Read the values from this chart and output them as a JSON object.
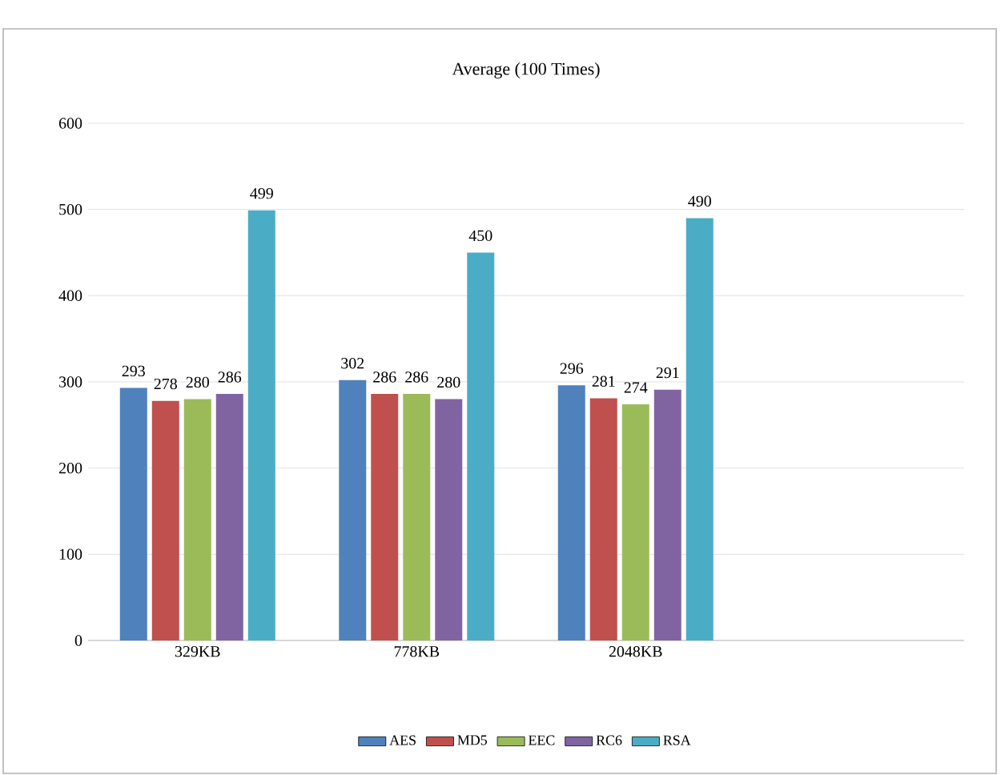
{
  "chart_data": {
    "type": "bar",
    "title": "Average (100 Times)",
    "categories": [
      "329KB",
      "778KB",
      "2048KB",
      null
    ],
    "series": [
      {
        "name": "AES",
        "color": "#4f81bd",
        "values": [
          293,
          302,
          296,
          null
        ]
      },
      {
        "name": "MD5",
        "color": "#c0504d",
        "values": [
          278,
          286,
          281,
          null
        ]
      },
      {
        "name": "EEC",
        "color": "#9bbb59",
        "values": [
          280,
          286,
          274,
          null
        ]
      },
      {
        "name": "RC6",
        "color": "#8064a2",
        "values": [
          286,
          280,
          291,
          null
        ]
      },
      {
        "name": "RSA",
        "color": "#4bacc6",
        "values": [
          499,
          450,
          490,
          null
        ]
      }
    ],
    "ylim": [
      0,
      600
    ],
    "yticks": [
      0,
      100,
      200,
      300,
      400,
      500,
      600
    ],
    "grid": "y",
    "legend": "bottom",
    "data_labels": true
  }
}
